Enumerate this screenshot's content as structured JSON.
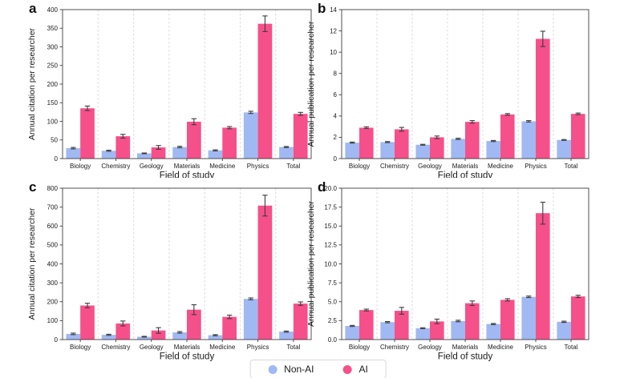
{
  "figure": {
    "background": "#ffffff",
    "legend": {
      "items": [
        {
          "label": "Non-AI",
          "color": "#a0b9f3"
        },
        {
          "label": "AI",
          "color": "#f6508a"
        }
      ]
    },
    "style": {
      "bar_nonai_color": "#a0b9f3",
      "bar_ai_color": "#f6508a",
      "errorbar_color": "#3c3c3c",
      "grid_color": "#d9d9d9",
      "spine_color": "#3f3f3f"
    }
  },
  "chart_data": [
    {
      "panel_label": "a",
      "type": "bar",
      "title": "",
      "xlabel": "Field of study",
      "ylabel": "Annual citation per researcher",
      "ylim": [
        0,
        400
      ],
      "grid": "vertical-dashed",
      "legend_position": "shared-bottom",
      "yticks": [
        0,
        50,
        100,
        150,
        200,
        250,
        300,
        350,
        400
      ],
      "ytick_labels": [
        "0",
        "50",
        "100",
        "150",
        "200",
        "250",
        "300",
        "350",
        "400"
      ],
      "categories": [
        "Biology",
        "Chemistry",
        "Geology",
        "Materials",
        "Medicine",
        "Physics",
        "Total"
      ],
      "series": [
        {
          "name": "Non-AI",
          "color": "#a0b9f3",
          "values": [
            28,
            21,
            14,
            31,
            22,
            124,
            31
          ],
          "errors": [
            2,
            1.5,
            1,
            2,
            1.5,
            3,
            1.5
          ]
        },
        {
          "name": "AI",
          "color": "#f6508a",
          "values": [
            135,
            60,
            30,
            99,
            83,
            362,
            120
          ],
          "errors": [
            6,
            5,
            5,
            8,
            3,
            21,
            4
          ]
        }
      ]
    },
    {
      "panel_label": "b",
      "type": "bar",
      "title": "",
      "xlabel": "Field of study",
      "ylabel": "Annual publication per researcher",
      "ylim": [
        0,
        14
      ],
      "grid": "vertical-dashed",
      "legend_position": "shared-bottom",
      "yticks": [
        0,
        2,
        4,
        6,
        8,
        10,
        12,
        14
      ],
      "ytick_labels": [
        "0",
        "2",
        "4",
        "6",
        "8",
        "10",
        "12",
        "14"
      ],
      "categories": [
        "Biology",
        "Chemistry",
        "Geology",
        "Materials",
        "Medicine",
        "Physics",
        "Total"
      ],
      "series": [
        {
          "name": "Non-AI",
          "color": "#a0b9f3",
          "values": [
            1.5,
            1.55,
            1.3,
            1.85,
            1.65,
            3.5,
            1.75
          ],
          "errors": [
            0.05,
            0.05,
            0.04,
            0.06,
            0.05,
            0.07,
            0.04
          ]
        },
        {
          "name": "AI",
          "color": "#f6508a",
          "values": [
            2.9,
            2.75,
            2.0,
            3.45,
            4.15,
            11.25,
            4.2
          ],
          "errors": [
            0.08,
            0.18,
            0.12,
            0.12,
            0.08,
            0.72,
            0.08
          ]
        }
      ]
    },
    {
      "panel_label": "c",
      "type": "bar",
      "title": "",
      "xlabel": "Field of study",
      "ylabel": "Annual citation per researcher",
      "ylim": [
        0,
        800
      ],
      "grid": "vertical-dashed",
      "legend_position": "shared-bottom",
      "yticks": [
        0,
        100,
        200,
        300,
        400,
        500,
        600,
        700,
        800
      ],
      "ytick_labels": [
        "0",
        "100",
        "200",
        "300",
        "400",
        "500",
        "600",
        "700",
        "800"
      ],
      "categories": [
        "Biology",
        "Chemistry",
        "Geology",
        "Materials",
        "Medicine",
        "Physics",
        "Total"
      ],
      "series": [
        {
          "name": "Non-AI",
          "color": "#a0b9f3",
          "values": [
            30,
            25,
            15,
            38,
            23,
            215,
            42
          ],
          "errors": [
            4,
            3,
            2,
            4,
            3,
            5,
            3
          ]
        },
        {
          "name": "AI",
          "color": "#f6508a",
          "values": [
            180,
            85,
            48,
            158,
            120,
            708,
            190
          ],
          "errors": [
            12,
            13,
            15,
            26,
            9,
            55,
            9
          ]
        }
      ]
    },
    {
      "panel_label": "d",
      "type": "bar",
      "title": "",
      "xlabel": "Field of study",
      "ylabel": "Annual publication per researcher",
      "ylim": [
        0,
        20
      ],
      "grid": "vertical-dashed",
      "legend_position": "shared-bottom",
      "yticks": [
        0,
        2.5,
        5,
        7.5,
        10,
        12.5,
        15,
        17.5,
        20
      ],
      "ytick_labels": [
        "0.0",
        "2.5",
        "5.0",
        "7.5",
        "10.0",
        "12.5",
        "15.0",
        "17.5",
        "20.0"
      ],
      "categories": [
        "Biology",
        "Chemistry",
        "Geology",
        "Materials",
        "Medicine",
        "Physics",
        "Total"
      ],
      "series": [
        {
          "name": "Non-AI",
          "color": "#a0b9f3",
          "values": [
            1.8,
            2.3,
            1.5,
            2.45,
            2.05,
            5.65,
            2.35
          ],
          "errors": [
            0.07,
            0.08,
            0.06,
            0.1,
            0.08,
            0.1,
            0.08
          ]
        },
        {
          "name": "AI",
          "color": "#f6508a",
          "values": [
            3.9,
            3.8,
            2.4,
            4.8,
            5.25,
            16.7,
            5.7
          ],
          "errors": [
            0.12,
            0.45,
            0.3,
            0.3,
            0.15,
            1.45,
            0.15
          ]
        }
      ]
    }
  ]
}
